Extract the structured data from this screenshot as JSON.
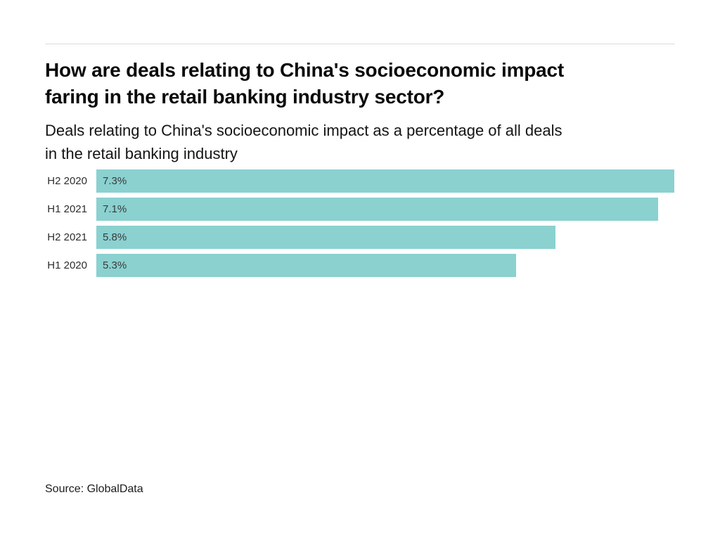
{
  "chart_data": {
    "type": "bar",
    "orientation": "horizontal",
    "title": "How are deals relating to China's socioeconomic impact faring in the retail banking industry sector?",
    "title_lines": [
      "How are deals relating to China's socioeconomic impact",
      "faring in the retail banking industry sector?"
    ],
    "subtitle": "Deals relating to China's socioeconomic impact as a percentage of all deals in the retail banking industry",
    "subtitle_lines": [
      "Deals relating to China's socioeconomic impact as a percentage of all deals",
      "in the retail banking industry"
    ],
    "categories": [
      "H2 2020",
      "H1 2021",
      "H2 2021",
      "H1 2020"
    ],
    "values": [
      7.3,
      7.1,
      5.8,
      5.3
    ],
    "value_labels": [
      "7.3%",
      "7.1%",
      "5.8%",
      "5.3%"
    ],
    "unit": "%",
    "xlim": [
      0,
      7.3
    ],
    "bar_color": "#8AD1D0",
    "grid": false,
    "legend": false,
    "source": "Source: GlobalData"
  }
}
